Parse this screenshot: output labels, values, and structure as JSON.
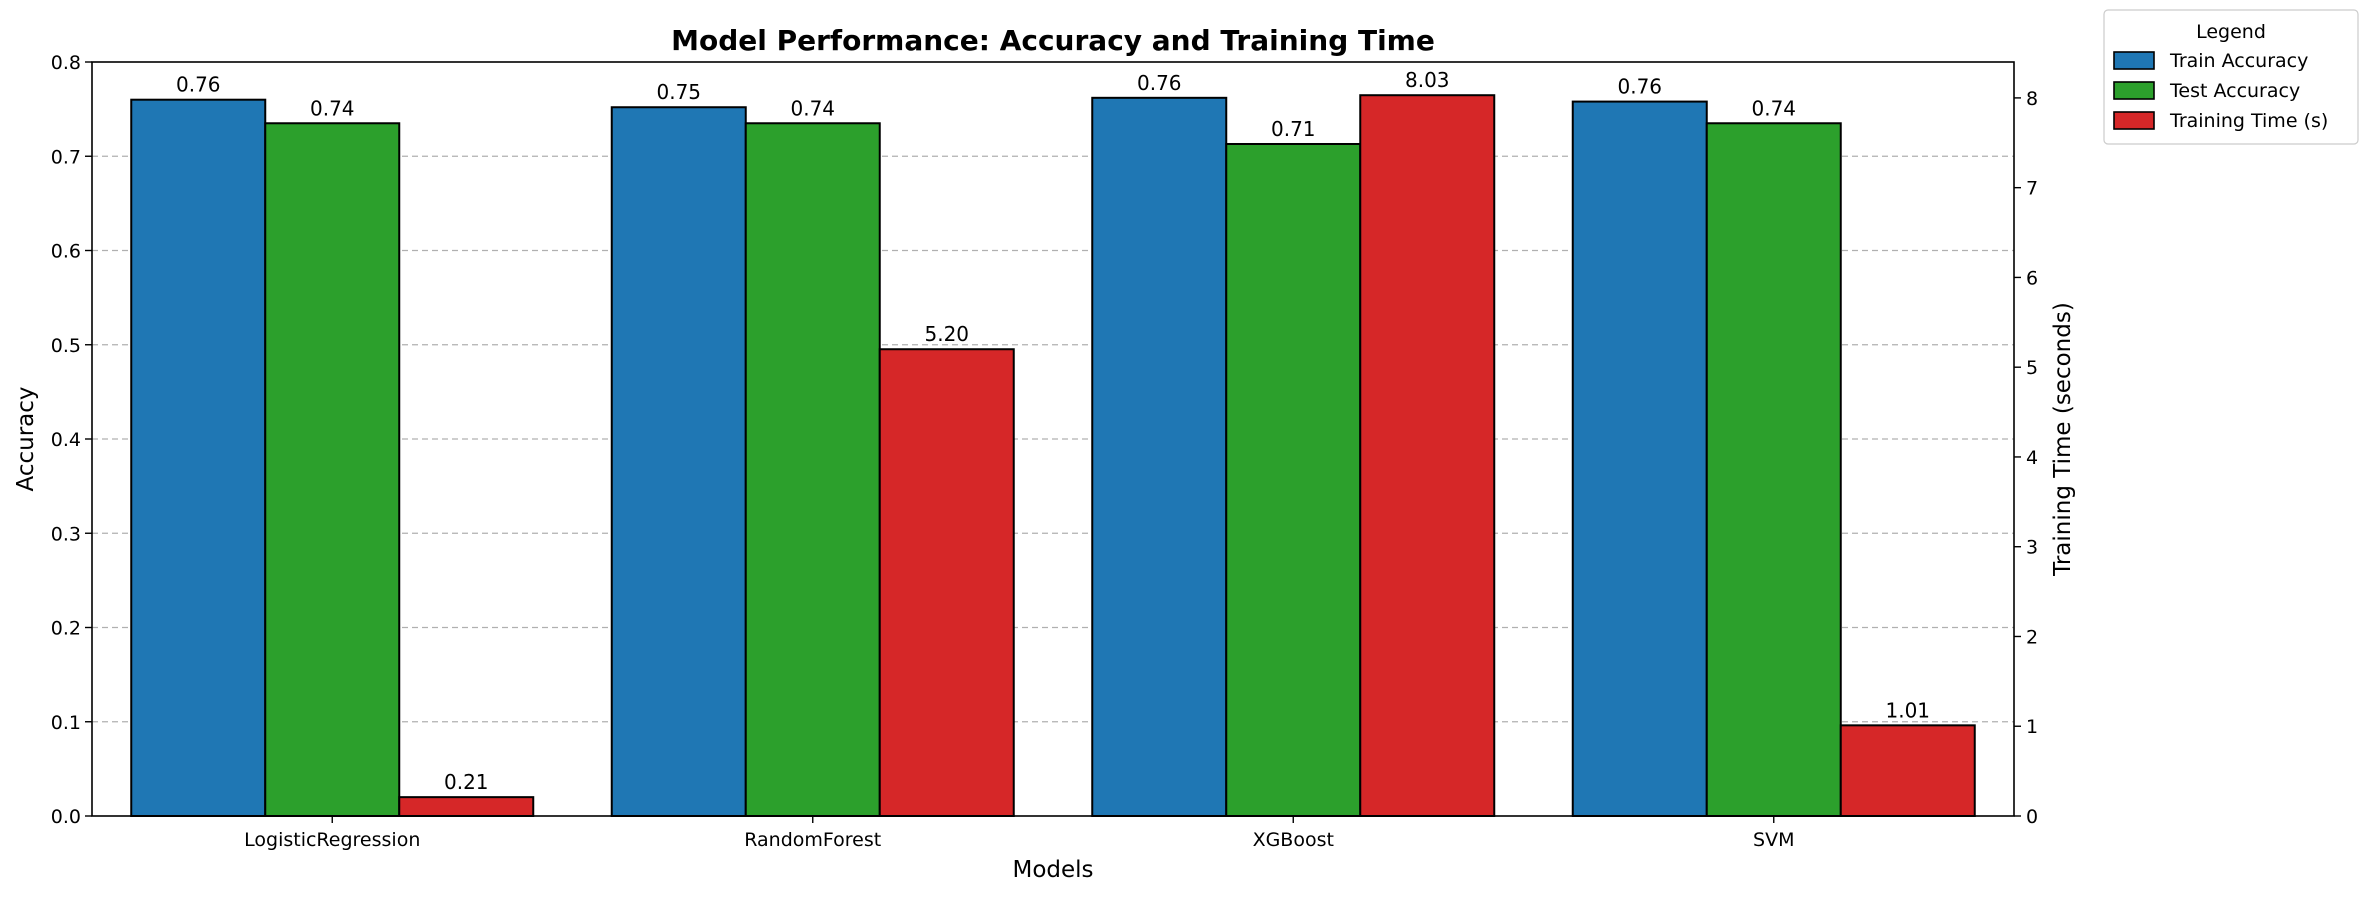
{
  "chart_data": {
    "type": "bar",
    "title": "Model Performance: Accuracy and Training Time",
    "xlabel": "Models",
    "ylabel": "Accuracy",
    "y2label": "Training Time (seconds)",
    "categories": [
      "LogisticRegression",
      "RandomForest",
      "XGBoost",
      "SVM"
    ],
    "ylim": [
      0,
      0.8
    ],
    "y2lim": [
      0,
      8.4
    ],
    "yticks": [
      "0.0",
      "0.1",
      "0.2",
      "0.3",
      "0.4",
      "0.5",
      "0.6",
      "0.7",
      "0.8"
    ],
    "y2ticks": [
      "0",
      "1",
      "2",
      "3",
      "4",
      "5",
      "6",
      "7",
      "8"
    ],
    "grid": "horizontal dashed",
    "legend_title": "Legend",
    "legend_position": "outside top-right",
    "series": [
      {
        "name": "Train Accuracy",
        "axis": "left",
        "color": "#1f77b4",
        "values": [
          0.76,
          0.752,
          0.762,
          0.758
        ],
        "labels": [
          "0.76",
          "0.75",
          "0.76",
          "0.76"
        ]
      },
      {
        "name": "Test Accuracy",
        "axis": "left",
        "color": "#2ca02c",
        "values": [
          0.735,
          0.735,
          0.713,
          0.735
        ],
        "labels": [
          "0.74",
          "0.74",
          "0.71",
          "0.74"
        ]
      },
      {
        "name": "Training Time (s)",
        "axis": "right",
        "color": "#d62728",
        "values": [
          0.21,
          5.2,
          8.03,
          1.01
        ],
        "labels": [
          "0.21",
          "5.20",
          "8.03",
          "1.01"
        ]
      }
    ]
  }
}
